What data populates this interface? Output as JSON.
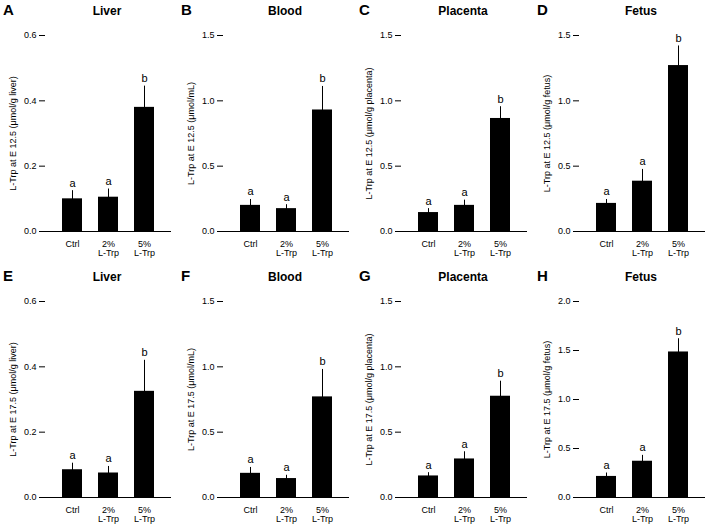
{
  "chart_data": [
    {
      "type": "bar",
      "title": "Liver",
      "annotations": [
        "A"
      ],
      "ylabel": "L-Trp at E 12.5 (μmol/g liver)",
      "categories": [
        "Ctrl",
        "2%\nL-Trp",
        "5%\nL-Trp"
      ],
      "values": [
        0.1,
        0.105,
        0.38
      ],
      "errors": [
        0.025,
        0.025,
        0.065
      ],
      "bar_labels": [
        "a",
        "a",
        "b"
      ],
      "ylim": [
        0,
        0.6
      ],
      "yticks": [
        {
          "value": 0,
          "label": "0.0"
        },
        0.2,
        0.4,
        0.6
      ]
    },
    {
      "type": "bar",
      "title": "Blood",
      "annotations": [
        "B"
      ],
      "ylabel": "L-Trp at E 12.5 (μmol/mL)",
      "categories": [
        "Ctrl",
        "2%\nL-Trp",
        "5%\nL-Trp"
      ],
      "values": [
        0.2,
        0.175,
        0.93
      ],
      "errors": [
        0.045,
        0.03,
        0.18
      ],
      "bar_labels": [
        "a",
        "a",
        "b"
      ],
      "ylim": [
        0,
        1.5
      ],
      "yticks": [
        {
          "value": 0,
          "label": "0.0"
        },
        0.5,
        {
          "value": 1,
          "label": "1.0"
        },
        1.5
      ]
    },
    {
      "type": "bar",
      "title": "Placenta",
      "annotations": [
        "C"
      ],
      "ylabel": "L-Trp at E 12.5 (μmol/g placenta)",
      "categories": [
        "Ctrl",
        "2%\nL-Trp",
        "5%\nL-Trp"
      ],
      "values": [
        0.145,
        0.2,
        0.865
      ],
      "errors": [
        0.03,
        0.04,
        0.09
      ],
      "bar_labels": [
        "a",
        "a",
        "b"
      ],
      "ylim": [
        0,
        1.5
      ],
      "yticks": [
        {
          "value": 0,
          "label": "0.0"
        },
        0.5,
        {
          "value": 1,
          "label": "1.0"
        },
        1.5
      ]
    },
    {
      "type": "bar",
      "title": "Fetus",
      "annotations": [
        "D"
      ],
      "ylabel": "L-Trp at E 12.5 (μmol/g fetus)",
      "categories": [
        "Ctrl",
        "2%\nL-Trp",
        "5%\nL-Trp"
      ],
      "values": [
        0.215,
        0.385,
        1.27
      ],
      "errors": [
        0.03,
        0.09,
        0.15
      ],
      "bar_labels": [
        "a",
        "a",
        "b"
      ],
      "ylim": [
        0,
        1.5
      ],
      "yticks": [
        {
          "value": 0,
          "label": "0.0"
        },
        0.5,
        {
          "value": 1,
          "label": "1.0"
        },
        1.5
      ]
    },
    {
      "type": "bar",
      "title": "Liver",
      "annotations": [
        "E"
      ],
      "ylabel": "L-Trp at E 17.5 (μmol/g liver)",
      "categories": [
        "Ctrl",
        "2%\nL-Trp",
        "5%\nL-Trp"
      ],
      "values": [
        0.085,
        0.075,
        0.325
      ],
      "errors": [
        0.02,
        0.02,
        0.095
      ],
      "bar_labels": [
        "a",
        "a",
        "b"
      ],
      "ylim": [
        0,
        0.6
      ],
      "yticks": [
        {
          "value": 0,
          "label": "0.0"
        },
        0.2,
        0.4,
        0.6
      ]
    },
    {
      "type": "bar",
      "title": "Blood",
      "annotations": [
        "F"
      ],
      "ylabel": "L-Trp at E 17.5 (μmol/mL)",
      "categories": [
        "Ctrl",
        "2%\nL-Trp",
        "5%\nL-Trp"
      ],
      "values": [
        0.185,
        0.145,
        0.77
      ],
      "errors": [
        0.045,
        0.025,
        0.21
      ],
      "bar_labels": [
        "a",
        "a",
        "b"
      ],
      "ylim": [
        0,
        1.5
      ],
      "yticks": [
        {
          "value": 0,
          "label": "0.0"
        },
        0.5,
        {
          "value": 1,
          "label": "1.0"
        },
        1.5
      ]
    },
    {
      "type": "bar",
      "title": "Placenta",
      "annotations": [
        "G"
      ],
      "ylabel": "L-Trp at E 17.5 (μmol/g placenta)",
      "categories": [
        "Ctrl",
        "2%\nL-Trp",
        "5%\nL-Trp"
      ],
      "values": [
        0.165,
        0.295,
        0.775
      ],
      "errors": [
        0.025,
        0.055,
        0.115
      ],
      "bar_labels": [
        "a",
        "a",
        "b"
      ],
      "ylim": [
        0,
        1.5
      ],
      "yticks": [
        {
          "value": 0,
          "label": "0.0"
        },
        0.5,
        {
          "value": 1,
          "label": "1.0"
        },
        1.5
      ]
    },
    {
      "type": "bar",
      "title": "Fetus",
      "annotations": [
        "H"
      ],
      "ylabel": "L-Trp at E 17.5 (μmol/g fetus)",
      "categories": [
        "Ctrl",
        "2%\nL-Trp",
        "5%\nL-Trp"
      ],
      "values": [
        0.215,
        0.37,
        1.485
      ],
      "errors": [
        0.035,
        0.06,
        0.135
      ],
      "bar_labels": [
        "a",
        "a",
        "b"
      ],
      "ylim": [
        0,
        2.0
      ],
      "yticks": [
        {
          "value": 0,
          "label": "0.0"
        },
        0.5,
        {
          "value": 1,
          "label": "1.0"
        },
        1.5,
        {
          "value": 2,
          "label": "2.0"
        }
      ]
    }
  ]
}
